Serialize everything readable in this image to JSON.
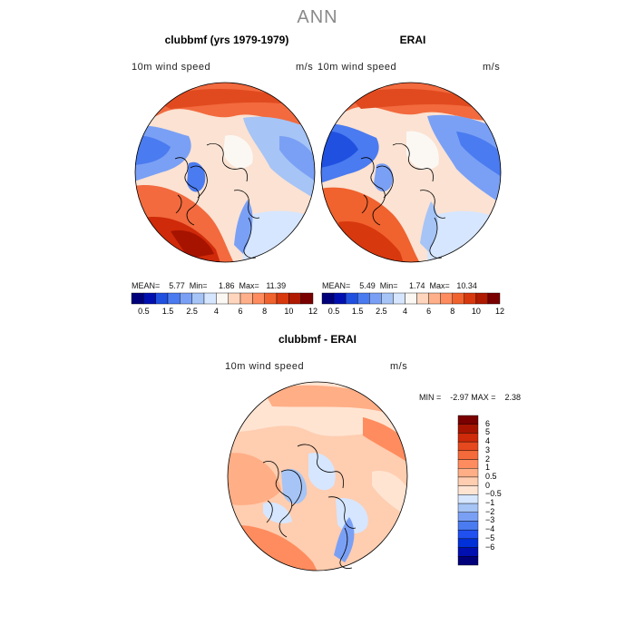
{
  "title": "ANN",
  "colors": {
    "land_outline": "#000000",
    "bottom_scale": [
      "#00007a",
      "#0010b0",
      "#0030d8",
      "#2050f0",
      "#4a7bf0",
      "#7aa0f5",
      "#a6c4f5",
      "#d6e6ff",
      "#ffe4d2",
      "#ffcdb0",
      "#ffae86",
      "#ff8c5e",
      "#f56a3a",
      "#e6491e",
      "#cf2a0a",
      "#a61400",
      "#7a0000"
    ],
    "top_scale": [
      "#00007a",
      "#0010b0",
      "#2050e0",
      "#4a7bf0",
      "#7aa0f5",
      "#a6c4f5",
      "#d6e6ff",
      "#fbf8f4",
      "#ffd6bd",
      "#ffb08a",
      "#ff8c5e",
      "#f0622e",
      "#d8380e",
      "#b01a00",
      "#7a0000"
    ]
  },
  "panels": [
    {
      "title": "clubbmf (yrs 1979-1979)",
      "variable": "10m wind speed",
      "units": "m/s",
      "stats": "MEAN=    5.77  Min=     1.86  Max=   11.39",
      "colorbar_ticks": [
        "0.5",
        "1.5",
        "2.5",
        "4",
        "6",
        "8",
        "10",
        "12"
      ]
    },
    {
      "title": "ERAI",
      "variable": "10m wind speed",
      "units": "m/s",
      "stats": "MEAN=    5.49  Min=     1.74  Max=   10.34",
      "colorbar_ticks": [
        "0.5",
        "1.5",
        "2.5",
        "4",
        "6",
        "8",
        "10",
        "12"
      ]
    },
    {
      "title": "clubbmf - ERAI",
      "variable": "10m wind speed",
      "units": "m/s",
      "stats": "MIN =    -2.97 MAX =    2.38",
      "colorbar_ticks": [
        "6",
        "5",
        "4",
        "3",
        "2",
        "1",
        "0.5",
        "0",
        "−0.5",
        "−1",
        "−2",
        "−3",
        "−4",
        "−5",
        "−6"
      ]
    }
  ]
}
